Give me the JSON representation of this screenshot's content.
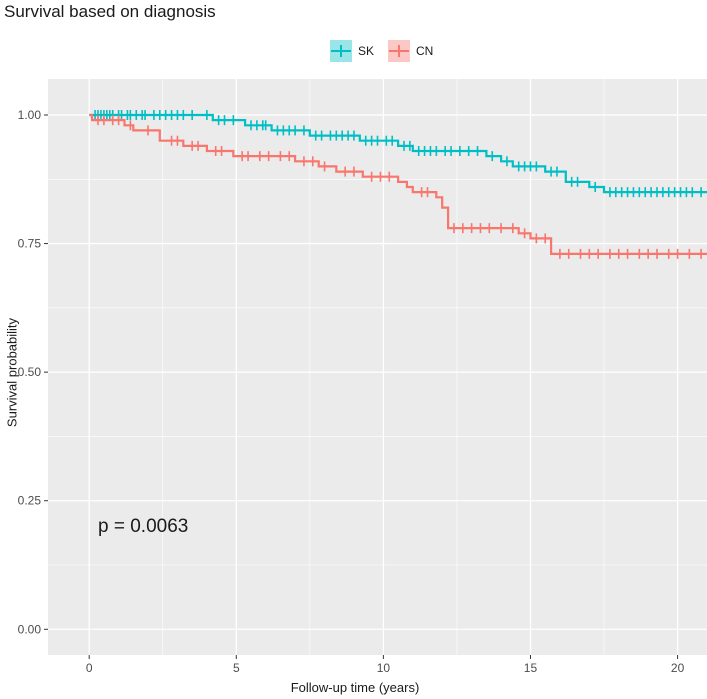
{
  "chart_data": {
    "type": "line",
    "title": "Survival based on diagnosis",
    "xlabel": "Follow-up time (years)",
    "ylabel": "Survival probability",
    "xlim": [
      -1.4,
      21
    ],
    "ylim": [
      -0.05,
      1.07
    ],
    "x_ticks": [
      0,
      5,
      10,
      15,
      20
    ],
    "y_ticks": [
      0.0,
      0.25,
      0.5,
      0.75,
      1.0
    ],
    "x_tick_labels": [
      "0",
      "5",
      "10",
      "15",
      "20"
    ],
    "y_tick_labels": [
      "0.00",
      "0.25",
      "0.50",
      "0.75",
      "1.00"
    ],
    "grid": true,
    "legend_position": "top",
    "annotation": "p = 0.0063",
    "series": [
      {
        "name": "SK",
        "color": "#00bfc4",
        "steps": [
          [
            0,
            1.0
          ],
          [
            4.2,
            0.99
          ],
          [
            5.3,
            0.98
          ],
          [
            6.2,
            0.97
          ],
          [
            7.5,
            0.96
          ],
          [
            9.2,
            0.95
          ],
          [
            10.5,
            0.94
          ],
          [
            11.0,
            0.93
          ],
          [
            13.5,
            0.92
          ],
          [
            14.0,
            0.91
          ],
          [
            14.4,
            0.9
          ],
          [
            15.5,
            0.89
          ],
          [
            16.2,
            0.87
          ],
          [
            17.0,
            0.86
          ],
          [
            17.5,
            0.85
          ],
          [
            21,
            0.85
          ]
        ],
        "censored_x": [
          0.2,
          0.3,
          0.4,
          0.5,
          0.6,
          0.7,
          0.8,
          1.0,
          1.1,
          1.3,
          1.4,
          1.6,
          1.8,
          1.9,
          2.2,
          2.4,
          2.6,
          2.8,
          3.0,
          3.2,
          3.5,
          4.0,
          4.4,
          4.6,
          4.9,
          5.5,
          5.7,
          5.9,
          6.0,
          6.4,
          6.6,
          6.8,
          7.0,
          7.3,
          7.7,
          7.9,
          8.2,
          8.4,
          8.6,
          8.8,
          9.0,
          9.4,
          9.6,
          9.8,
          10.1,
          10.3,
          10.7,
          10.9,
          11.2,
          11.4,
          11.6,
          11.8,
          12.1,
          12.3,
          12.6,
          12.9,
          13.2,
          13.7,
          14.2,
          14.6,
          14.8,
          15.0,
          15.2,
          15.7,
          15.9,
          16.4,
          16.6,
          17.2,
          17.7,
          17.9,
          18.1,
          18.3,
          18.5,
          18.7,
          18.9,
          19.1,
          19.3,
          19.5,
          19.7,
          19.9,
          20.1,
          20.3,
          20.5,
          20.8
        ]
      },
      {
        "name": "CN",
        "color": "#f8766d",
        "steps": [
          [
            0,
            1.0
          ],
          [
            0.1,
            0.99
          ],
          [
            1.2,
            0.98
          ],
          [
            1.5,
            0.97
          ],
          [
            2.4,
            0.95
          ],
          [
            3.2,
            0.94
          ],
          [
            4.0,
            0.93
          ],
          [
            4.9,
            0.92
          ],
          [
            7.0,
            0.91
          ],
          [
            7.8,
            0.9
          ],
          [
            8.4,
            0.89
          ],
          [
            9.3,
            0.88
          ],
          [
            10.5,
            0.87
          ],
          [
            10.8,
            0.86
          ],
          [
            11.0,
            0.85
          ],
          [
            11.8,
            0.84
          ],
          [
            12.0,
            0.82
          ],
          [
            12.2,
            0.78
          ],
          [
            14.6,
            0.77
          ],
          [
            15.0,
            0.76
          ],
          [
            15.7,
            0.73
          ],
          [
            21,
            0.73
          ]
        ],
        "censored_x": [
          0.3,
          0.5,
          0.8,
          1.0,
          1.4,
          2.0,
          2.8,
          3.0,
          3.5,
          3.7,
          4.3,
          4.5,
          5.2,
          5.4,
          5.8,
          6.1,
          6.5,
          6.8,
          7.3,
          7.6,
          8.0,
          8.7,
          9.0,
          9.6,
          9.9,
          10.2,
          11.3,
          11.5,
          12.4,
          12.7,
          13.0,
          13.3,
          13.6,
          14.0,
          14.4,
          14.8,
          15.2,
          15.5,
          16.0,
          16.3,
          16.7,
          17.0,
          17.3,
          17.7,
          18.0,
          18.3,
          18.7,
          19.0,
          19.3,
          19.7,
          20.0,
          20.4,
          20.8
        ]
      }
    ]
  }
}
